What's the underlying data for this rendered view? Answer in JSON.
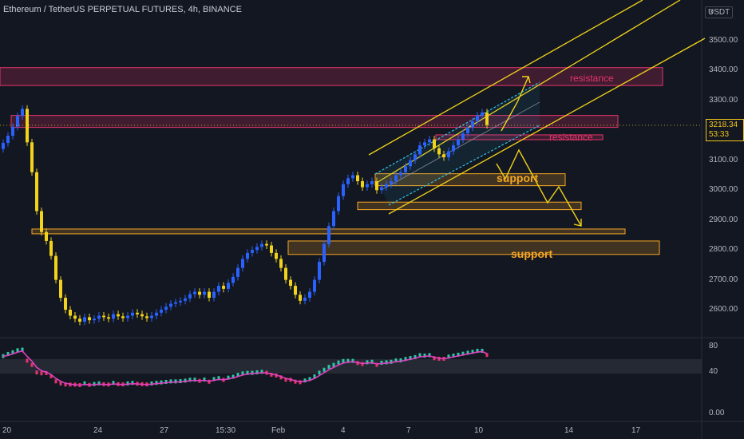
{
  "header": {
    "title": "Ethereum / TetherUS PERPETUAL FUTURES, 4h, BINANCE"
  },
  "currency": "USDT",
  "currency_prefix": "3",
  "last_price": "3218.34",
  "countdown": "53:33",
  "annotations": {
    "resistance_upper": "resistance",
    "resistance_lower": "resistance",
    "support_upper": "support",
    "support_lower": "support"
  },
  "colors": {
    "background": "#131722",
    "up_candle": "#2962ff",
    "down_candle": "#f0d31a",
    "resistance_zone": "#e5346a",
    "support_zone": "#f5a623",
    "channel_yellow": "#f0d31a",
    "channel_cyan": "#2ec4e6",
    "oscillator_line": "#e040c0"
  },
  "chart_data": {
    "type": "candlestick",
    "price_axis": {
      "ticks": [
        "3500.00",
        "3400.00",
        "3300.00",
        "3200.00",
        "3100.00",
        "3000.00",
        "2900.00",
        "2800.00",
        "2700.00",
        "2600.00"
      ],
      "range": [
        2585,
        3650
      ]
    },
    "time_axis": {
      "ticks": [
        "20",
        "24",
        "27",
        "15:30",
        "Feb",
        "4",
        "7",
        "10",
        "14",
        "17"
      ]
    },
    "oscillator_axis": {
      "ticks": [
        "80",
        "40",
        "0.00"
      ],
      "range": [
        0,
        80
      ]
    },
    "candles_close": [
      3158,
      3182,
      3212,
      3248,
      3272,
      3160,
      3060,
      2930,
      2860,
      2830,
      2780,
      2700,
      2640,
      2600,
      2580,
      2570,
      2560,
      2575,
      2565,
      2570,
      2580,
      2575,
      2570,
      2585,
      2578,
      2572,
      2580,
      2590,
      2585,
      2578,
      2572,
      2580,
      2590,
      2600,
      2610,
      2620,
      2625,
      2630,
      2638,
      2652,
      2660,
      2650,
      2660,
      2640,
      2660,
      2680,
      2670,
      2690,
      2710,
      2740,
      2770,
      2790,
      2800,
      2810,
      2820,
      2815,
      2790,
      2770,
      2740,
      2700,
      2680,
      2650,
      2630,
      2640,
      2660,
      2700,
      2760,
      2820,
      2880,
      2930,
      2980,
      3020,
      3040,
      3050,
      3030,
      3010,
      3020,
      3030,
      3000,
      3010,
      3020,
      3030,
      3050,
      3060,
      3080,
      3100,
      3120,
      3150,
      3160,
      3170,
      3140,
      3120,
      3110,
      3130,
      3150,
      3170,
      3190,
      3210,
      3230,
      3250,
      3260,
      3218
    ],
    "zones": [
      {
        "kind": "resistance",
        "low": 3350,
        "high": 3410
      },
      {
        "kind": "resistance",
        "low": 3210,
        "high": 3250
      },
      {
        "kind": "resistance",
        "low": 3170,
        "high": 3185
      },
      {
        "kind": "support",
        "low": 3015,
        "high": 3055
      },
      {
        "kind": "support",
        "low": 2935,
        "high": 2960
      },
      {
        "kind": "support",
        "low": 2855,
        "high": 2870
      },
      {
        "kind": "support",
        "low": 2785,
        "high": 2830
      }
    ],
    "oscillator_band": [
      40,
      60
    ],
    "legend": "none",
    "grid": false
  }
}
